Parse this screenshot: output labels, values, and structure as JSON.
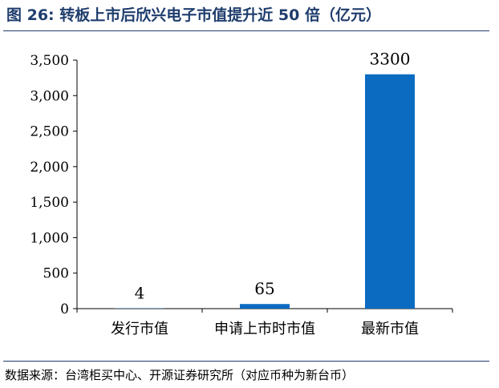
{
  "header": {
    "title": "图 26:  转板上市后欣兴电子市值提升近 50 倍（亿元）"
  },
  "footer": {
    "source": "数据来源：台湾柜买中心、开源证券研究所（对应币种为新台币）"
  },
  "colors": {
    "title": "#1f3d6d",
    "bar": "#0a6bc1",
    "axis": "#000000"
  },
  "chart_data": {
    "type": "bar",
    "title": "",
    "xlabel": "",
    "ylabel": "",
    "categories": [
      "发行市值",
      "申请上市时市值",
      "最新市值"
    ],
    "values": [
      4,
      65,
      3300
    ],
    "data_labels": [
      "4",
      "65",
      "3300"
    ],
    "ylim": [
      0,
      3500
    ],
    "yticks": [
      0,
      500,
      1000,
      1500,
      2000,
      2500,
      3000,
      3500
    ],
    "ytick_labels": [
      "0",
      "500",
      "1,000",
      "1,500",
      "2,000",
      "2,500",
      "3,000",
      "3,500"
    ],
    "grid": false,
    "legend": "none"
  }
}
